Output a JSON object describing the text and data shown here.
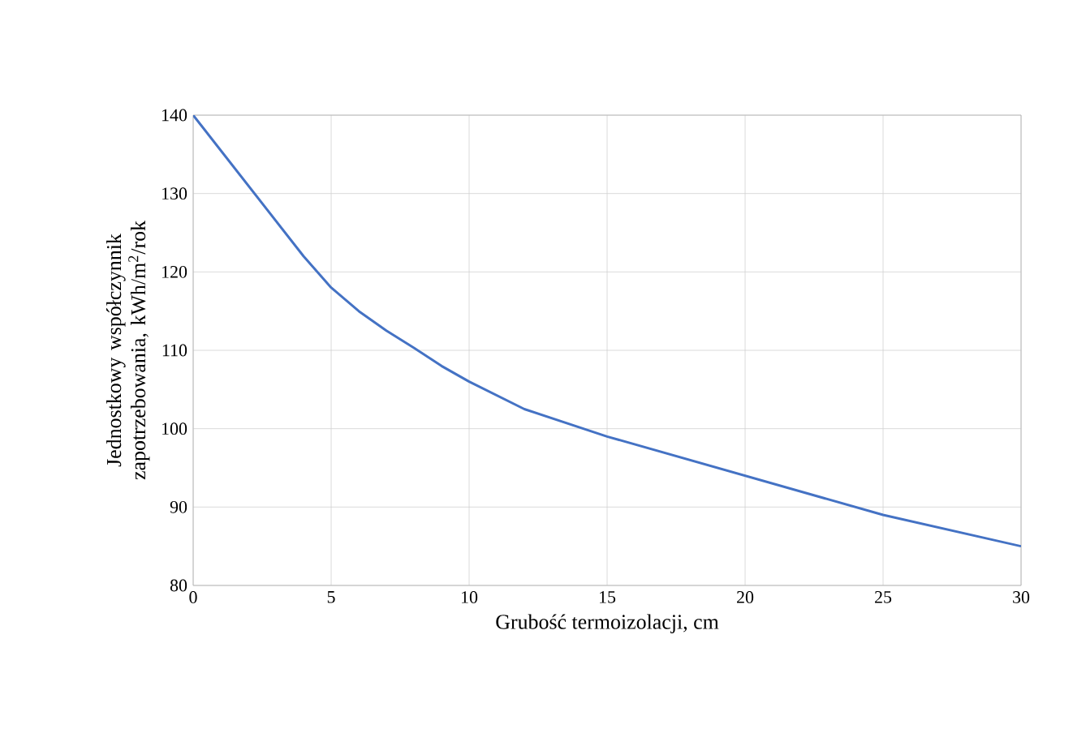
{
  "chart_data": {
    "type": "line",
    "xlabel": "Grubość termoizolacji, cm",
    "ylabel": "Jednostkowy współczynnik zapotrzebowania, kWh/m$^{2}$/rok",
    "x": [
      0,
      1,
      2,
      3,
      4,
      5,
      6,
      7,
      8,
      9,
      10,
      12,
      15,
      20,
      25,
      30
    ],
    "series": [
      {
        "color": "#4472c4",
        "values": [
          140,
          135.5,
          131,
          126.5,
          122,
          118,
          115,
          112.5,
          110.3,
          108,
          106,
          102.5,
          99,
          94,
          89,
          85
        ]
      }
    ],
    "xlim": [
      0,
      30
    ],
    "ylim": [
      80,
      140
    ],
    "xticks": [
      0,
      5,
      10,
      15,
      20,
      25,
      30
    ],
    "yticks": [
      80,
      90,
      100,
      110,
      120,
      130,
      140
    ],
    "grid": true,
    "marker": "none",
    "line_style": "solid"
  }
}
